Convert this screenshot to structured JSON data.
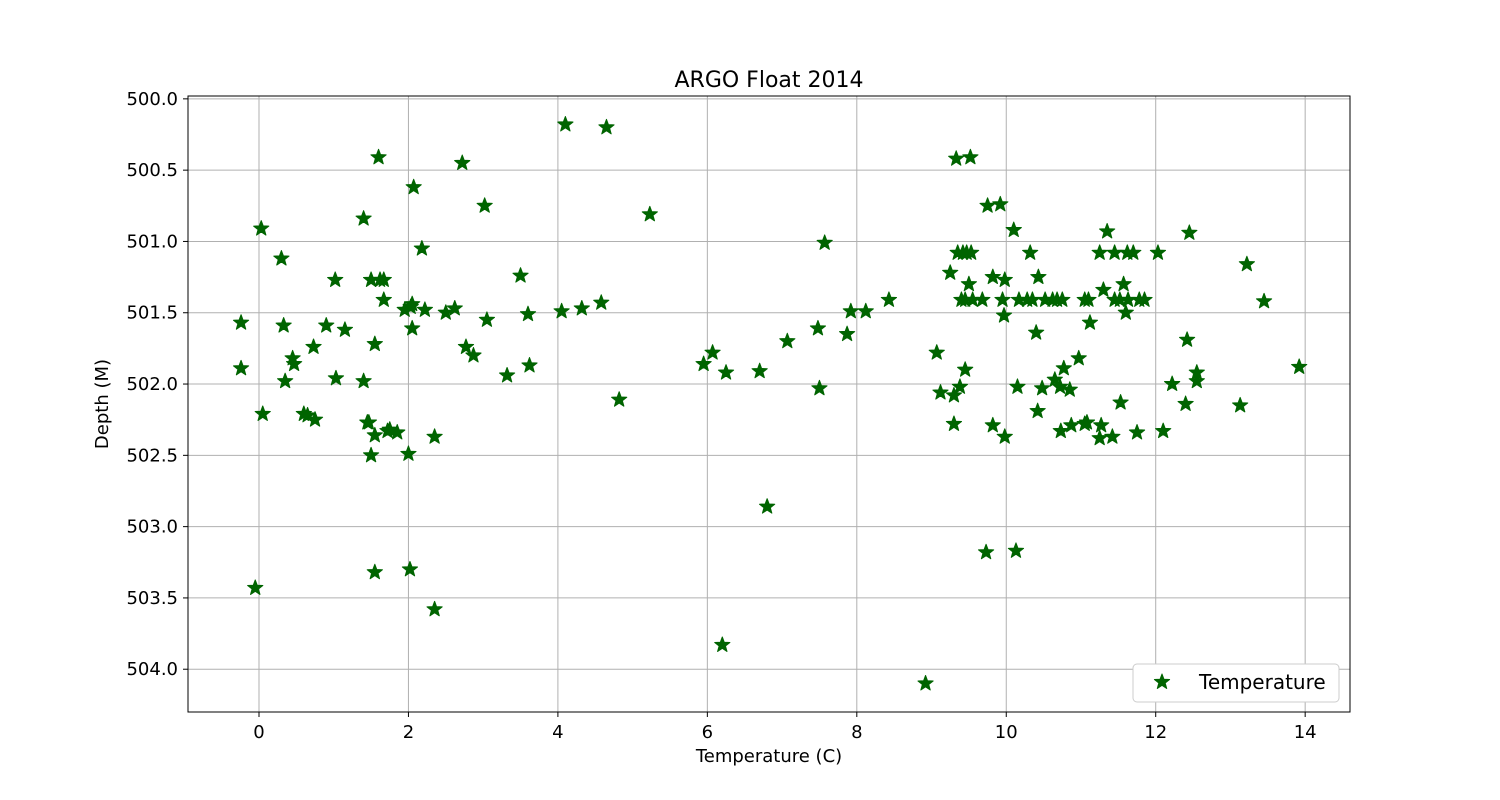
{
  "chart_data": {
    "type": "scatter",
    "title": "ARGO Float 2014",
    "xlabel": "Temperature (C)",
    "ylabel": "Depth (M)",
    "xlim": [
      -0.95,
      14.6
    ],
    "ylim": [
      504.3,
      499.98
    ],
    "y_inverted": true,
    "xticks": [
      0,
      2,
      4,
      6,
      8,
      10,
      12,
      14
    ],
    "xtick_labels": [
      "0",
      "2",
      "4",
      "6",
      "8",
      "10",
      "12",
      "14"
    ],
    "yticks": [
      500.0,
      500.5,
      501.0,
      501.5,
      502.0,
      502.5,
      503.0,
      503.5,
      504.0
    ],
    "ytick_labels": [
      "500.0",
      "500.5",
      "501.0",
      "501.5",
      "502.0",
      "502.5",
      "503.0",
      "503.5",
      "504.0"
    ],
    "grid": true,
    "legend_position": "bottom-right",
    "marker": "star",
    "series": [
      {
        "name": "Temperature",
        "color": "#006400",
        "points": [
          [
            0.03,
            500.91
          ],
          [
            -0.05,
            503.43
          ],
          [
            0.05,
            502.21
          ],
          [
            -0.24,
            501.57
          ],
          [
            -0.24,
            501.89
          ],
          [
            0.3,
            501.12
          ],
          [
            0.33,
            501.59
          ],
          [
            0.35,
            501.98
          ],
          [
            0.45,
            501.82
          ],
          [
            0.47,
            501.86
          ],
          [
            0.6,
            502.21
          ],
          [
            0.65,
            502.22
          ],
          [
            0.75,
            502.25
          ],
          [
            0.73,
            501.74
          ],
          [
            0.9,
            501.59
          ],
          [
            1.02,
            501.27
          ],
          [
            1.03,
            501.96
          ],
          [
            1.15,
            501.62
          ],
          [
            1.4,
            500.84
          ],
          [
            1.4,
            501.98
          ],
          [
            1.45,
            502.27
          ],
          [
            1.47,
            502.27
          ],
          [
            1.5,
            501.27
          ],
          [
            1.5,
            502.5
          ],
          [
            1.55,
            502.36
          ],
          [
            1.55,
            503.32
          ],
          [
            1.55,
            501.72
          ],
          [
            1.6,
            500.41
          ],
          [
            1.62,
            501.27
          ],
          [
            1.67,
            501.27
          ],
          [
            1.67,
            501.41
          ],
          [
            1.72,
            502.33
          ],
          [
            1.75,
            502.32
          ],
          [
            1.85,
            502.34
          ],
          [
            1.95,
            501.48
          ],
          [
            2.0,
            502.49
          ],
          [
            2.02,
            503.3
          ],
          [
            2.03,
            501.46
          ],
          [
            2.05,
            501.44
          ],
          [
            2.05,
            501.61
          ],
          [
            2.07,
            500.62
          ],
          [
            2.18,
            501.05
          ],
          [
            2.22,
            501.48
          ],
          [
            2.35,
            502.37
          ],
          [
            2.35,
            503.58
          ],
          [
            2.5,
            501.5
          ],
          [
            2.62,
            501.47
          ],
          [
            2.72,
            500.45
          ],
          [
            2.77,
            501.74
          ],
          [
            2.87,
            501.8
          ],
          [
            3.02,
            500.75
          ],
          [
            3.05,
            501.55
          ],
          [
            3.32,
            501.94
          ],
          [
            3.5,
            501.24
          ],
          [
            3.6,
            501.51
          ],
          [
            3.62,
            501.87
          ],
          [
            4.05,
            501.49
          ],
          [
            4.1,
            500.18
          ],
          [
            4.32,
            501.47
          ],
          [
            4.58,
            501.43
          ],
          [
            4.65,
            500.2
          ],
          [
            4.82,
            502.11
          ],
          [
            5.23,
            500.81
          ],
          [
            5.95,
            501.86
          ],
          [
            6.07,
            501.78
          ],
          [
            6.2,
            503.83
          ],
          [
            6.25,
            501.92
          ],
          [
            6.7,
            501.91
          ],
          [
            6.8,
            502.86
          ],
          [
            7.07,
            501.7
          ],
          [
            7.48,
            501.61
          ],
          [
            7.5,
            502.03
          ],
          [
            7.57,
            501.01
          ],
          [
            7.87,
            501.65
          ],
          [
            7.92,
            501.49
          ],
          [
            8.12,
            501.49
          ],
          [
            8.43,
            501.41
          ],
          [
            8.92,
            504.1
          ],
          [
            9.07,
            501.78
          ],
          [
            9.12,
            502.06
          ],
          [
            9.25,
            501.22
          ],
          [
            9.3,
            502.28
          ],
          [
            9.3,
            502.08
          ],
          [
            9.33,
            500.42
          ],
          [
            9.35,
            501.08
          ],
          [
            9.38,
            502.02
          ],
          [
            9.4,
            501.41
          ],
          [
            9.42,
            501.08
          ],
          [
            9.45,
            501.41
          ],
          [
            9.45,
            501.9
          ],
          [
            9.47,
            501.08
          ],
          [
            9.5,
            501.3
          ],
          [
            9.52,
            500.41
          ],
          [
            9.53,
            501.08
          ],
          [
            9.55,
            501.41
          ],
          [
            9.68,
            501.41
          ],
          [
            9.73,
            503.18
          ],
          [
            9.75,
            500.75
          ],
          [
            9.82,
            501.25
          ],
          [
            9.82,
            502.29
          ],
          [
            9.92,
            500.74
          ],
          [
            9.95,
            501.41
          ],
          [
            9.97,
            501.52
          ],
          [
            9.98,
            501.27
          ],
          [
            9.98,
            502.37
          ],
          [
            10.1,
            500.92
          ],
          [
            10.13,
            503.17
          ],
          [
            10.15,
            502.02
          ],
          [
            10.17,
            501.41
          ],
          [
            10.28,
            501.41
          ],
          [
            10.32,
            501.08
          ],
          [
            10.35,
            501.41
          ],
          [
            10.4,
            501.64
          ],
          [
            10.42,
            502.19
          ],
          [
            10.43,
            501.25
          ],
          [
            10.48,
            502.03
          ],
          [
            10.52,
            501.41
          ],
          [
            10.62,
            501.41
          ],
          [
            10.65,
            501.97
          ],
          [
            10.68,
            501.41
          ],
          [
            10.72,
            502.02
          ],
          [
            10.73,
            502.33
          ],
          [
            10.75,
            501.41
          ],
          [
            10.77,
            501.89
          ],
          [
            10.85,
            502.04
          ],
          [
            10.87,
            502.29
          ],
          [
            10.97,
            501.82
          ],
          [
            11.05,
            502.28
          ],
          [
            11.05,
            501.41
          ],
          [
            11.08,
            502.27
          ],
          [
            11.1,
            501.41
          ],
          [
            11.12,
            501.57
          ],
          [
            11.25,
            502.38
          ],
          [
            11.25,
            501.08
          ],
          [
            11.27,
            502.29
          ],
          [
            11.3,
            501.34
          ],
          [
            11.35,
            500.93
          ],
          [
            11.42,
            502.37
          ],
          [
            11.45,
            501.08
          ],
          [
            11.45,
            501.41
          ],
          [
            11.52,
            501.41
          ],
          [
            11.53,
            502.13
          ],
          [
            11.57,
            501.3
          ],
          [
            11.6,
            501.5
          ],
          [
            11.62,
            501.08
          ],
          [
            11.63,
            501.41
          ],
          [
            11.7,
            501.08
          ],
          [
            11.75,
            502.34
          ],
          [
            11.78,
            501.41
          ],
          [
            11.85,
            501.41
          ],
          [
            12.03,
            501.08
          ],
          [
            12.1,
            502.33
          ],
          [
            12.22,
            502.0
          ],
          [
            12.4,
            502.14
          ],
          [
            12.42,
            501.69
          ],
          [
            12.45,
            500.94
          ],
          [
            12.55,
            501.92
          ],
          [
            12.55,
            501.98
          ],
          [
            13.13,
            502.15
          ],
          [
            13.22,
            501.16
          ],
          [
            13.45,
            501.42
          ],
          [
            13.92,
            501.88
          ]
        ]
      }
    ]
  }
}
